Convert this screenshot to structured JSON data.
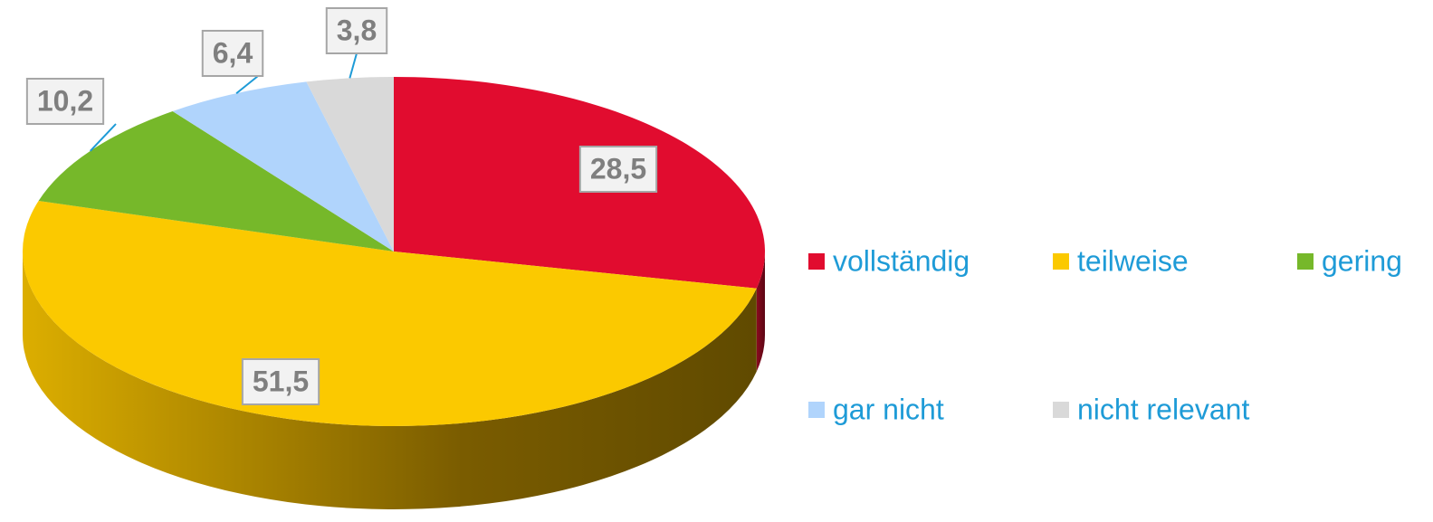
{
  "chart_data": {
    "type": "pie",
    "categories": [
      "vollständig",
      "teilweise",
      "gering",
      "gar nicht",
      "nicht relevant"
    ],
    "values": [
      28.5,
      51.5,
      10.2,
      6.4,
      3.8
    ],
    "value_labels": [
      "28,5",
      "51,5",
      "10,2",
      "6,4",
      "3,8"
    ],
    "colors": [
      "#e10c2f",
      "#fbc900",
      "#76b82a",
      "#b0d4fc",
      "#d9d9d9"
    ]
  }
}
